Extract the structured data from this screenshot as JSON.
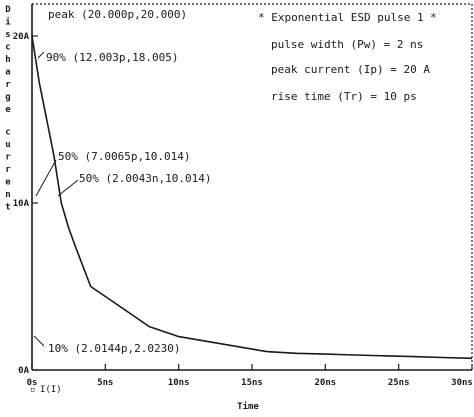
{
  "chart_data": {
    "type": "line",
    "xlabel": "Time",
    "ylabel": "Discharge current",
    "x_unit": "ns",
    "xlim": [
      0,
      30
    ],
    "ylim": [
      0,
      20
    ],
    "x_ticks": [
      0,
      5,
      10,
      15,
      20,
      25,
      30
    ],
    "x_tick_labels": [
      "0s",
      "5ns",
      "10ns",
      "15ns",
      "20ns",
      "25ns",
      "30ns"
    ],
    "y_ticks": [
      0,
      10,
      20
    ],
    "y_tick_labels": [
      "0A",
      "10A",
      "20A"
    ],
    "series": [
      {
        "name": "I(I)",
        "x": [
          0,
          0.5,
          1.0,
          1.5,
          2.0,
          2.5,
          3.0,
          4.0,
          6.0,
          8.0,
          10.0,
          12.0,
          14.0,
          16.0,
          18.0,
          20.0,
          22.0,
          24.0,
          26.0,
          28.0,
          30.0
        ],
        "y": [
          20.0,
          17.2,
          15.0,
          12.8,
          10.0,
          8.5,
          7.3,
          5.0,
          3.8,
          2.6,
          2.0,
          1.7,
          1.4,
          1.1,
          1.0,
          0.95,
          0.9,
          0.85,
          0.8,
          0.75,
          0.7
        ]
      }
    ],
    "legend": {
      "symbol": "▫",
      "label": "I(I)"
    },
    "annotations": [
      {
        "text": "peak (20.000p,20.000)"
      },
      {
        "text": "90% (12.003p,18.005)"
      },
      {
        "text": "50% (7.0065p,10.014)"
      },
      {
        "text": "50% (2.0043n,10.014)"
      },
      {
        "text": "10% (2.0144p,2.0230)"
      }
    ],
    "info_lines": [
      "* Exponential ESD pulse 1 *",
      "pulse width (Pw) = 2 ns",
      "peak current (Ip) = 20 A",
      "rise time (Tr) = 10 ps"
    ]
  }
}
